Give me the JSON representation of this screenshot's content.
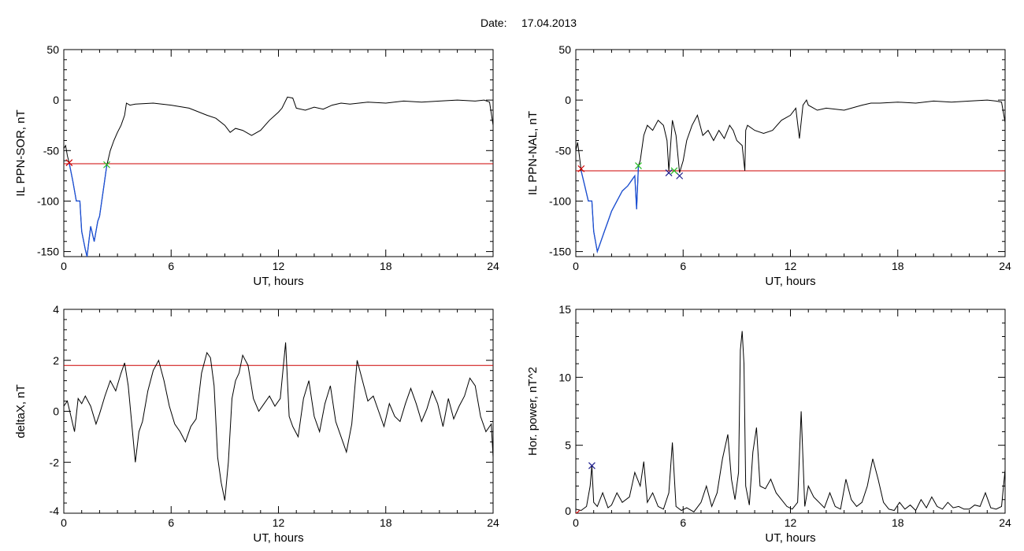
{
  "header": {
    "date_label": "Date:",
    "date_value": "17.04.2013"
  },
  "colors": {
    "line": "#000000",
    "threshold": "#cc0000",
    "highlight": "#1a4fd6",
    "marker_red": "#cc0000",
    "marker_green": "#22bb22",
    "marker_navy": "#1a1a8c"
  },
  "chart_data": [
    {
      "type": "line",
      "id": "ppn-sor",
      "title": "",
      "xlabel": "UT, hours",
      "ylabel": "IL PPN-SOR, nT",
      "xlim": [
        0,
        24
      ],
      "ylim": [
        -155,
        50
      ],
      "xticks": [
        0,
        6,
        12,
        18,
        24
      ],
      "yticks": [
        50,
        0,
        -50,
        -100,
        -150
      ],
      "threshold": -63,
      "highlight_range": [
        0.3,
        2.4
      ],
      "series": [
        {
          "x": [
            0,
            0.1,
            0.2,
            0.3,
            0.5,
            0.7,
            0.9,
            1.0,
            1.2,
            1.3,
            1.5,
            1.7,
            1.9,
            2.0,
            2.2,
            2.4,
            2.6,
            2.8,
            3.0,
            3.2,
            3.4,
            3.5,
            3.7,
            4,
            5,
            6,
            7,
            8,
            8.5,
            9,
            9.3,
            9.6,
            10,
            10.5,
            11,
            11.5,
            12,
            12.2,
            12.5,
            12.8,
            13,
            13.5,
            14,
            14.5,
            15,
            15.5,
            16,
            17,
            18,
            19,
            20,
            21,
            22,
            23,
            23.5,
            23.8,
            24
          ],
          "y": [
            -48,
            -45,
            -55,
            -62,
            -80,
            -100,
            -100,
            -130,
            -148,
            -155,
            -125,
            -140,
            -120,
            -115,
            -90,
            -65,
            -50,
            -40,
            -32,
            -25,
            -15,
            -3,
            -5,
            -4,
            -3,
            -5,
            -8,
            -15,
            -18,
            -25,
            -32,
            -28,
            -30,
            -35,
            -30,
            -20,
            -12,
            -8,
            3,
            2,
            -8,
            -10,
            -7,
            -9,
            -5,
            -3,
            -4,
            -2,
            -3,
            -1,
            -2,
            -1,
            0,
            -1,
            0,
            -2,
            -25
          ]
        }
      ],
      "markers": [
        {
          "x": 0.3,
          "y": -62,
          "color": "red"
        },
        {
          "x": 2.4,
          "y": -64,
          "color": "green"
        }
      ]
    },
    {
      "type": "line",
      "id": "ppn-nal",
      "title": "",
      "xlabel": "UT, hours",
      "ylabel": "IL PPN-NAL, nT",
      "xlim": [
        0,
        24
      ],
      "ylim": [
        -155,
        50
      ],
      "xticks": [
        0,
        6,
        12,
        18,
        24
      ],
      "yticks": [
        50,
        0,
        -50,
        -100,
        -150
      ],
      "threshold": -70,
      "highlight_range": [
        0.3,
        3.5
      ],
      "series": [
        {
          "x": [
            0,
            0.1,
            0.2,
            0.3,
            0.5,
            0.7,
            0.9,
            1.0,
            1.2,
            1.4,
            1.6,
            1.8,
            2.0,
            2.3,
            2.6,
            2.9,
            3.1,
            3.3,
            3.4,
            3.5,
            3.6,
            3.8,
            4.0,
            4.3,
            4.6,
            4.9,
            5.1,
            5.2,
            5.4,
            5.6,
            5.8,
            6.0,
            6.2,
            6.5,
            6.8,
            7.1,
            7.4,
            7.7,
            8,
            8.3,
            8.6,
            8.8,
            9,
            9.3,
            9.45,
            9.5,
            9.6,
            10,
            10.5,
            11,
            11.5,
            12,
            12.3,
            12.5,
            12.7,
            12.9,
            13,
            13.5,
            14,
            15,
            16,
            16.5,
            17,
            18,
            19,
            20,
            21,
            22,
            23,
            23.5,
            23.8,
            24
          ],
          "y": [
            -50,
            -42,
            -55,
            -70,
            -85,
            -100,
            -100,
            -130,
            -150,
            -140,
            -130,
            -120,
            -110,
            -100,
            -90,
            -85,
            -80,
            -75,
            -108,
            -65,
            -60,
            -35,
            -25,
            -30,
            -20,
            -25,
            -40,
            -70,
            -20,
            -35,
            -72,
            -60,
            -40,
            -25,
            -15,
            -35,
            -30,
            -40,
            -30,
            -38,
            -25,
            -30,
            -40,
            -45,
            -70,
            -30,
            -25,
            -30,
            -33,
            -30,
            -20,
            -15,
            -8,
            -38,
            -5,
            0,
            -5,
            -10,
            -8,
            -10,
            -5,
            -3,
            -3,
            -2,
            -3,
            -1,
            -2,
            -1,
            0,
            -1,
            -2,
            -22
          ]
        }
      ],
      "markers": [
        {
          "x": 0.3,
          "y": -68,
          "color": "red"
        },
        {
          "x": 3.5,
          "y": -65,
          "color": "green"
        },
        {
          "x": 5.2,
          "y": -72,
          "color": "navy"
        },
        {
          "x": 5.8,
          "y": -75,
          "color": "navy"
        },
        {
          "x": 5.5,
          "y": -70,
          "color": "green"
        }
      ]
    },
    {
      "type": "line",
      "id": "deltax",
      "title": "",
      "xlabel": "UT, hours",
      "ylabel": "deltaX, nT",
      "xlim": [
        0,
        24
      ],
      "ylim": [
        -4,
        4
      ],
      "xticks": [
        0,
        6,
        12,
        18,
        24
      ],
      "yticks": [
        4,
        2,
        0,
        -2,
        -4
      ],
      "threshold": 1.8,
      "series": [
        {
          "x": [
            0,
            0.2,
            0.4,
            0.6,
            0.8,
            1.0,
            1.2,
            1.5,
            1.8,
            2.0,
            2.3,
            2.6,
            2.9,
            3.2,
            3.4,
            3.6,
            3.8,
            4.0,
            4.2,
            4.4,
            4.7,
            5.0,
            5.3,
            5.6,
            5.9,
            6.2,
            6.5,
            6.8,
            7.1,
            7.4,
            7.7,
            8.0,
            8.2,
            8.4,
            8.6,
            8.8,
            9.0,
            9.2,
            9.4,
            9.6,
            9.8,
            10.0,
            10.3,
            10.6,
            10.9,
            11.2,
            11.5,
            11.8,
            12.1,
            12.4,
            12.6,
            12.8,
            13.1,
            13.4,
            13.7,
            14.0,
            14.3,
            14.6,
            14.9,
            15.2,
            15.5,
            15.8,
            16.1,
            16.4,
            16.7,
            17.0,
            17.3,
            17.6,
            17.9,
            18.2,
            18.5,
            18.8,
            19.1,
            19.4,
            19.7,
            20.0,
            20.3,
            20.6,
            20.9,
            21.2,
            21.5,
            21.8,
            22.1,
            22.4,
            22.7,
            23.0,
            23.3,
            23.6,
            23.9,
            24.0
          ],
          "y": [
            0.2,
            0.4,
            -0.2,
            -0.8,
            0.5,
            0.3,
            0.6,
            0.2,
            -0.5,
            -0.1,
            0.6,
            1.2,
            0.8,
            1.5,
            1.9,
            1.0,
            -0.5,
            -2.0,
            -0.8,
            -0.4,
            0.8,
            1.6,
            2.0,
            1.2,
            0.2,
            -0.5,
            -0.8,
            -1.2,
            -0.6,
            -0.3,
            1.5,
            2.3,
            2.1,
            1.0,
            -1.8,
            -2.8,
            -3.5,
            -2.0,
            0.5,
            1.2,
            1.5,
            2.2,
            1.8,
            0.5,
            0.0,
            0.3,
            0.6,
            0.2,
            0.5,
            2.7,
            -0.2,
            -0.6,
            -1.0,
            0.5,
            1.2,
            -0.2,
            -0.8,
            0.3,
            1.0,
            -0.4,
            -1.0,
            -1.6,
            -0.5,
            2.0,
            1.2,
            0.4,
            0.6,
            0.0,
            -0.6,
            0.3,
            -0.2,
            -0.4,
            0.3,
            0.9,
            0.3,
            -0.4,
            0.1,
            0.8,
            0.3,
            -0.6,
            0.5,
            -0.3,
            0.2,
            0.6,
            1.3,
            1.0,
            -0.2,
            -0.8,
            -0.5,
            -1.8
          ]
        }
      ]
    },
    {
      "type": "line",
      "id": "hor-power",
      "title": "",
      "xlabel": "UT, hours",
      "ylabel": "Hor. power, nT^2",
      "xlim": [
        0,
        24
      ],
      "ylim": [
        0,
        15
      ],
      "xticks": [
        0,
        6,
        12,
        18,
        24
      ],
      "yticks": [
        15,
        10,
        5,
        0
      ],
      "series": [
        {
          "x": [
            0,
            0.3,
            0.6,
            0.8,
            0.9,
            1.0,
            1.2,
            1.5,
            1.8,
            2.0,
            2.3,
            2.6,
            3.0,
            3.3,
            3.6,
            3.8,
            4.0,
            4.3,
            4.6,
            4.9,
            5.2,
            5.4,
            5.6,
            5.9,
            6.2,
            6.6,
            7.0,
            7.3,
            7.6,
            7.9,
            8.2,
            8.5,
            8.7,
            8.9,
            9.1,
            9.2,
            9.3,
            9.4,
            9.5,
            9.7,
            9.9,
            10.1,
            10.3,
            10.6,
            10.9,
            11.2,
            11.5,
            11.8,
            12.1,
            12.4,
            12.6,
            12.8,
            13.0,
            13.3,
            13.6,
            13.9,
            14.2,
            14.5,
            14.8,
            15.1,
            15.4,
            15.7,
            16.0,
            16.3,
            16.6,
            16.9,
            17.2,
            17.5,
            17.8,
            18.1,
            18.4,
            18.7,
            19.0,
            19.3,
            19.6,
            19.9,
            20.2,
            20.5,
            20.8,
            21.1,
            21.4,
            21.7,
            22.0,
            22.3,
            22.6,
            22.9,
            23.2,
            23.5,
            23.8,
            24.0
          ],
          "y": [
            0.3,
            0.2,
            0.5,
            2.0,
            3.5,
            0.8,
            0.5,
            1.5,
            0.4,
            0.6,
            1.5,
            0.8,
            1.2,
            3.0,
            2.0,
            3.8,
            0.8,
            1.5,
            0.5,
            0.3,
            1.5,
            5.2,
            0.5,
            0.2,
            0.4,
            0.1,
            0.8,
            2.0,
            0.5,
            1.5,
            4.0,
            5.8,
            2.5,
            1.0,
            3.0,
            12.0,
            13.4,
            11.0,
            2.0,
            0.6,
            4.5,
            6.3,
            2.0,
            1.8,
            2.5,
            1.5,
            1.0,
            0.5,
            0.3,
            0.8,
            7.5,
            0.5,
            2.0,
            1.2,
            0.8,
            0.4,
            1.5,
            0.5,
            0.3,
            2.5,
            1.0,
            0.5,
            0.8,
            2.0,
            4.0,
            2.5,
            0.8,
            0.3,
            0.2,
            0.8,
            0.3,
            0.6,
            0.2,
            1.0,
            0.4,
            1.2,
            0.5,
            0.3,
            0.8,
            0.4,
            0.5,
            0.3,
            0.3,
            0.6,
            0.5,
            1.5,
            0.4,
            0.3,
            0.5,
            3.2
          ]
        }
      ],
      "markers": [
        {
          "x": 0.9,
          "y": 3.5,
          "color": "navy"
        },
        {
          "x": 0.05,
          "y": 0.0,
          "color": "red"
        }
      ]
    }
  ]
}
